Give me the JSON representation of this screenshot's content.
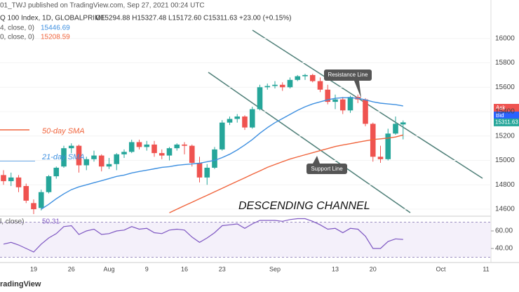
{
  "header": {
    "published": "01_TWJ published on TradingView.com, Sep 27, 2021 00:24 UTC",
    "symbol": "Q 100 Index, 1D, GLOBALPRIME",
    "ohlc": "O15294.88 H15327.48 L15172.60 C15311.63 +23.00 (+0.15%)"
  },
  "footer": "radingView",
  "price_tags": {
    "ask": "Ask",
    "bid": "Bid"
  },
  "chart_data": [
    {
      "type": "candlestick",
      "categories": [
        null,
        null,
        null,
        null,
        "19",
        null,
        null,
        null,
        null,
        "26",
        null,
        null,
        null,
        null,
        "Aug",
        null,
        null,
        null,
        null,
        "9",
        null,
        null,
        null,
        null,
        "16",
        null,
        null,
        null,
        null,
        "23",
        null,
        null,
        null,
        null,
        null,
        null,
        "Sep",
        null,
        null,
        null,
        null,
        null,
        null,
        null,
        "13",
        null,
        null,
        null,
        null,
        "20",
        null,
        null,
        null,
        null,
        null,
        null,
        null,
        null,
        "Oct",
        null,
        null,
        null,
        null,
        null,
        "11"
      ],
      "open": [
        14880,
        14830,
        14860,
        14790,
        14650,
        14610,
        14740,
        14870,
        14950,
        15100,
        15120,
        14960,
        15010,
        15040,
        14950,
        14970,
        15050,
        15070,
        15150,
        15110,
        15130,
        15060,
        15040,
        15100,
        15130,
        15120,
        14980,
        14860,
        14940,
        15090,
        15310,
        15340,
        15360,
        15270,
        15420,
        15600,
        15610,
        15620,
        15600,
        15660,
        15690,
        15700,
        15650,
        15580,
        15480,
        15500,
        15410,
        15520,
        15500,
        15300,
        15030,
        15010,
        15220,
        15294.88,
        null,
        null,
        null,
        null,
        null,
        null,
        null,
        null,
        null,
        null,
        null
      ],
      "high": [
        14920,
        14900,
        14880,
        14810,
        14680,
        14760,
        14880,
        14950,
        15120,
        15140,
        15130,
        15030,
        15080,
        15050,
        15020,
        15060,
        15090,
        15170,
        15170,
        15160,
        15160,
        15090,
        15110,
        15140,
        15150,
        15130,
        15030,
        14970,
        15110,
        15330,
        15360,
        15380,
        15370,
        15440,
        15620,
        15630,
        15650,
        15640,
        15680,
        15700,
        15710,
        15710,
        15680,
        15620,
        15540,
        15520,
        15530,
        15540,
        15510,
        15310,
        15120,
        15260,
        15360,
        15327.48,
        null,
        null,
        null,
        null,
        null,
        null,
        null,
        null,
        null,
        null,
        null
      ],
      "low": [
        14800,
        14790,
        14740,
        14650,
        14560,
        14590,
        14730,
        14850,
        14940,
        15060,
        14900,
        14920,
        14990,
        14910,
        14930,
        14920,
        15020,
        15060,
        15090,
        15080,
        15030,
        15010,
        15000,
        15080,
        15050,
        14950,
        14820,
        14800,
        14930,
        15080,
        15290,
        15310,
        15250,
        15260,
        15410,
        15580,
        15590,
        15570,
        15590,
        15650,
        15660,
        15640,
        15560,
        15460,
        15420,
        15380,
        15390,
        15470,
        15280,
        14990,
        14980,
        15000,
        15210,
        15172.6,
        null,
        null,
        null,
        null,
        null,
        null,
        null,
        null,
        null,
        null,
        null
      ],
      "close": [
        14830,
        14860,
        14780,
        14670,
        14600,
        14740,
        14870,
        14940,
        15100,
        15120,
        14960,
        15010,
        15040,
        14950,
        14970,
        15050,
        15070,
        15150,
        15110,
        15130,
        15060,
        15040,
        15100,
        15130,
        15120,
        14980,
        14860,
        14940,
        15090,
        15310,
        15340,
        15360,
        15270,
        15420,
        15600,
        15610,
        15620,
        15600,
        15660,
        15690,
        15700,
        15650,
        15580,
        15480,
        15500,
        15410,
        15520,
        15500,
        15300,
        15030,
        15010,
        15220,
        15300,
        15311.63,
        null,
        null,
        null,
        null,
        null,
        null,
        null,
        null,
        null,
        null,
        null
      ],
      "up_color": "#26a69a",
      "down_color": "#ef5350",
      "series": [
        {
          "name": "4, close, 0)",
          "color": "#3d8fe0",
          "values": [
            null,
            null,
            null,
            null,
            null,
            14600,
            14640,
            14686,
            14726,
            14760,
            14783,
            14800,
            14817,
            14834,
            14851,
            14869,
            14880,
            14897,
            14909,
            14920,
            14931,
            14943,
            14949,
            14960,
            14966,
            14971,
            14977,
            14989,
            15000,
            15023,
            15051,
            15086,
            15126,
            15171,
            15223,
            15269,
            15309,
            15343,
            15377,
            15411,
            15440,
            15463,
            15480,
            15497,
            15509,
            15514,
            15514,
            15509,
            15497,
            15480,
            15469,
            15463,
            15457,
            15446.69,
            null,
            null,
            null,
            null,
            null,
            null,
            null,
            null,
            null,
            null,
            null
          ]
        },
        {
          "name": "0, close, 0)",
          "color": "#f0643c",
          "values": [
            null,
            null,
            null,
            null,
            null,
            null,
            null,
            null,
            null,
            null,
            null,
            null,
            null,
            null,
            null,
            null,
            null,
            null,
            null,
            null,
            null,
            null,
            14571,
            14600,
            14629,
            14657,
            14686,
            14714,
            14743,
            14771,
            14800,
            14829,
            14857,
            14886,
            14914,
            14943,
            14966,
            14989,
            15011,
            15029,
            15046,
            15063,
            15080,
            15097,
            15114,
            15126,
            15137,
            15149,
            15160,
            15171,
            15177,
            15183,
            15192,
            15208.59,
            null,
            null,
            null,
            null,
            null,
            null,
            null,
            null,
            null,
            null,
            null
          ]
        }
      ],
      "annotations": {
        "sma50": "50-day SMA",
        "sma21": "21-day SMA",
        "resistance": "Resistance Line",
        "support": "Support Line",
        "channel": "DESCENDING CHANNEL"
      },
      "ylim": [
        14560,
        16246
      ],
      "yticks": [
        14600,
        14800,
        15000,
        15200,
        15400,
        15600,
        15800,
        16000
      ],
      "grid": true
    },
    {
      "type": "line",
      "name": "l, close) ",
      "color": "#7e57c2",
      "band": [
        30,
        70
      ],
      "values": [
        45,
        47,
        44,
        40,
        36,
        45,
        52,
        57,
        65,
        66,
        56,
        60,
        62,
        56,
        57,
        60,
        61,
        65,
        62,
        63,
        58,
        57,
        61,
        62,
        61,
        53,
        47,
        52,
        58,
        66,
        67,
        68,
        63,
        68,
        72,
        72,
        72,
        71,
        73,
        74,
        74,
        71,
        67,
        62,
        63,
        58,
        63,
        62,
        54,
        40,
        40,
        48,
        51,
        50.31,
        null,
        null,
        null,
        null,
        null,
        null,
        null,
        null,
        null,
        null,
        null
      ],
      "ylim": [
        25.6,
        75.2
      ],
      "yticks": [
        {
          "value": 60,
          "label": "60.00"
        },
        {
          "value": 40,
          "label": "40.00"
        }
      ]
    }
  ]
}
